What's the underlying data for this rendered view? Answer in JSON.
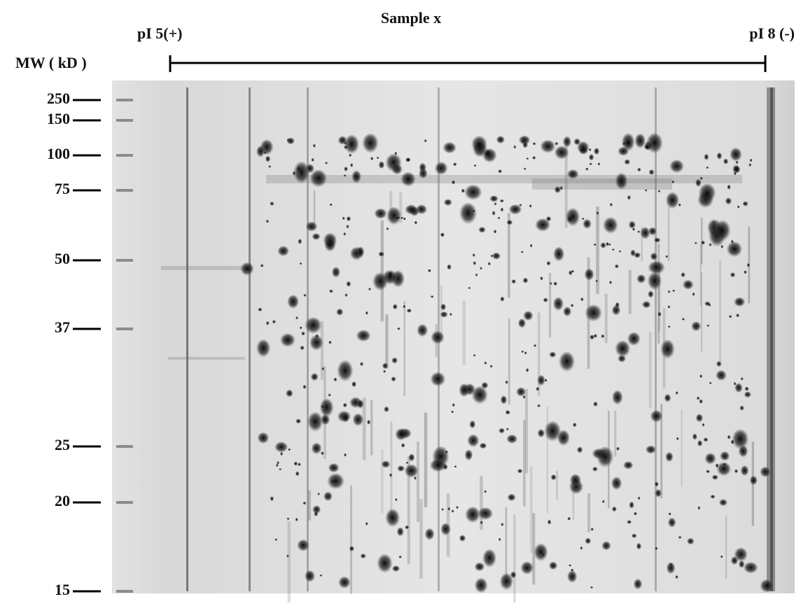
{
  "header": {
    "title": "Sample x",
    "left_label": "pI 5(+)",
    "right_label": "pI 8 (-)",
    "axis_label": "MW ( kD )"
  },
  "mw_markers": [
    250,
    150,
    100,
    75,
    50,
    37,
    25,
    20,
    15
  ]
}
